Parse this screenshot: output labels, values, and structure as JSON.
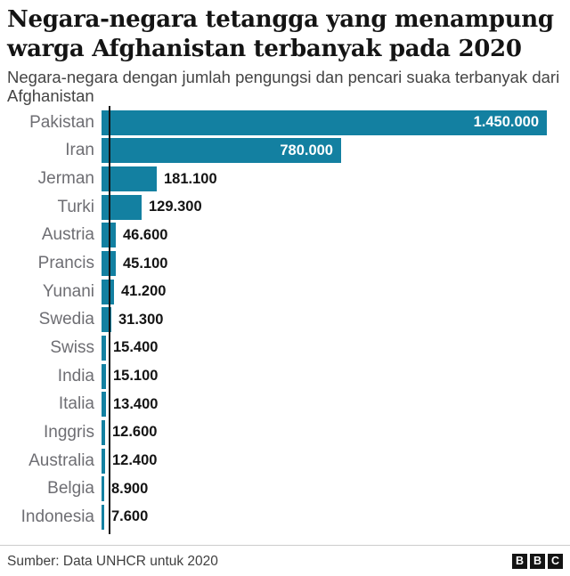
{
  "header": {
    "title": "Negara-negara tetangga yang menampung warga Afghanistan terbanyak pada 2020",
    "subtitle": "Negara-negara dengan jumlah pengungsi dan pencari suaka terbanyak dari Afghanistan"
  },
  "chart_data": {
    "type": "bar",
    "orientation": "horizontal",
    "title": "Negara-negara tetangga yang menampung warga Afghanistan terbanyak pada 2020",
    "subtitle": "Negara-negara dengan jumlah pengungsi dan pencari suaka terbanyak dari Afghanistan",
    "categories": [
      "Pakistan",
      "Iran",
      "Jerman",
      "Turki",
      "Austria",
      "Prancis",
      "Yunani",
      "Swedia",
      "Swiss",
      "India",
      "Italia",
      "Inggris",
      "Australia",
      "Belgia",
      "Indonesia"
    ],
    "values": [
      1450000,
      780000,
      181100,
      129300,
      46600,
      45100,
      41200,
      31300,
      15400,
      15100,
      13400,
      12600,
      12400,
      8900,
      7600
    ],
    "value_labels": [
      "1.450.000",
      "780.000",
      "181.100",
      "129.300",
      "46.600",
      "45.100",
      "41.200",
      "31.300",
      "15.400",
      "15.100",
      "13.400",
      "12.600",
      "12.400",
      "8.900",
      "7.600"
    ],
    "xlim": [
      0,
      1450000
    ],
    "bar_color": "#1380A1",
    "axis_color": "#141414",
    "grid": false,
    "legend": false,
    "value_label_inside_color": "#ffffff",
    "value_label_outside_color": "#141414"
  },
  "footer": {
    "source": "Sumber: Data UNHCR untuk 2020",
    "logo_letters": [
      "B",
      "B",
      "C"
    ]
  }
}
